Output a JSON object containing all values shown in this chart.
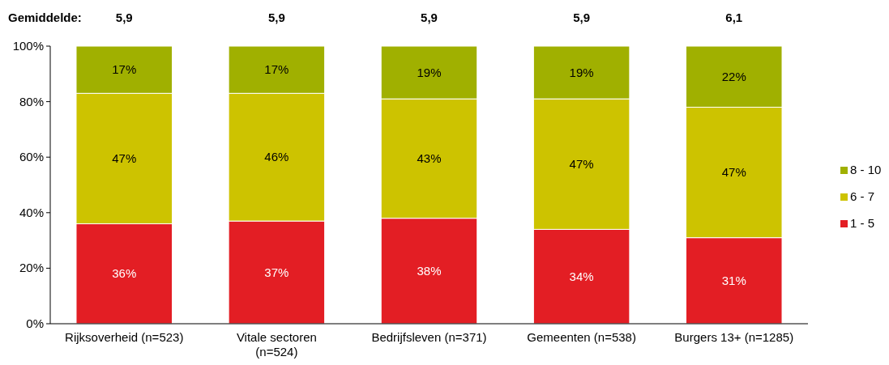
{
  "chart_data": {
    "type": "bar",
    "stacked": true,
    "categories": [
      "Rijksoverheid (n=523)",
      "Vitale sectoren (n=524)",
      "Bedrijfsleven (n=371)",
      "Gemeenten (n=538)",
      "Burgers 13+ (n=1285)"
    ],
    "series": [
      {
        "name": "1 - 5",
        "color": "#e31e24",
        "values": [
          36,
          37,
          38,
          34,
          31
        ],
        "value_labels": [
          "36%",
          "37%",
          "38%",
          "34%",
          "31%"
        ]
      },
      {
        "name": "6 - 7",
        "color": "#cdc300",
        "values": [
          47,
          46,
          43,
          47,
          47
        ],
        "value_labels": [
          "47%",
          "46%",
          "43%",
          "47%",
          "47%"
        ]
      },
      {
        "name": "8 - 10",
        "color": "#a0b000",
        "values": [
          17,
          17,
          19,
          19,
          22
        ],
        "value_labels": [
          "17%",
          "17%",
          "19%",
          "19%",
          "22%"
        ]
      }
    ],
    "ylim": [
      0,
      100
    ],
    "yticks": [
      {
        "value": 0,
        "label": "0%"
      },
      {
        "value": 20,
        "label": "20%"
      },
      {
        "value": 40,
        "label": "40%"
      },
      {
        "value": 60,
        "label": "60%"
      },
      {
        "value": 80,
        "label": "80%"
      },
      {
        "value": 100,
        "label": "100%"
      }
    ],
    "grid": false,
    "legend": "right",
    "annotations": [
      "Gemiddelde:",
      "5,9",
      "5,9",
      "5,9",
      "5,9",
      "6,1"
    ]
  }
}
